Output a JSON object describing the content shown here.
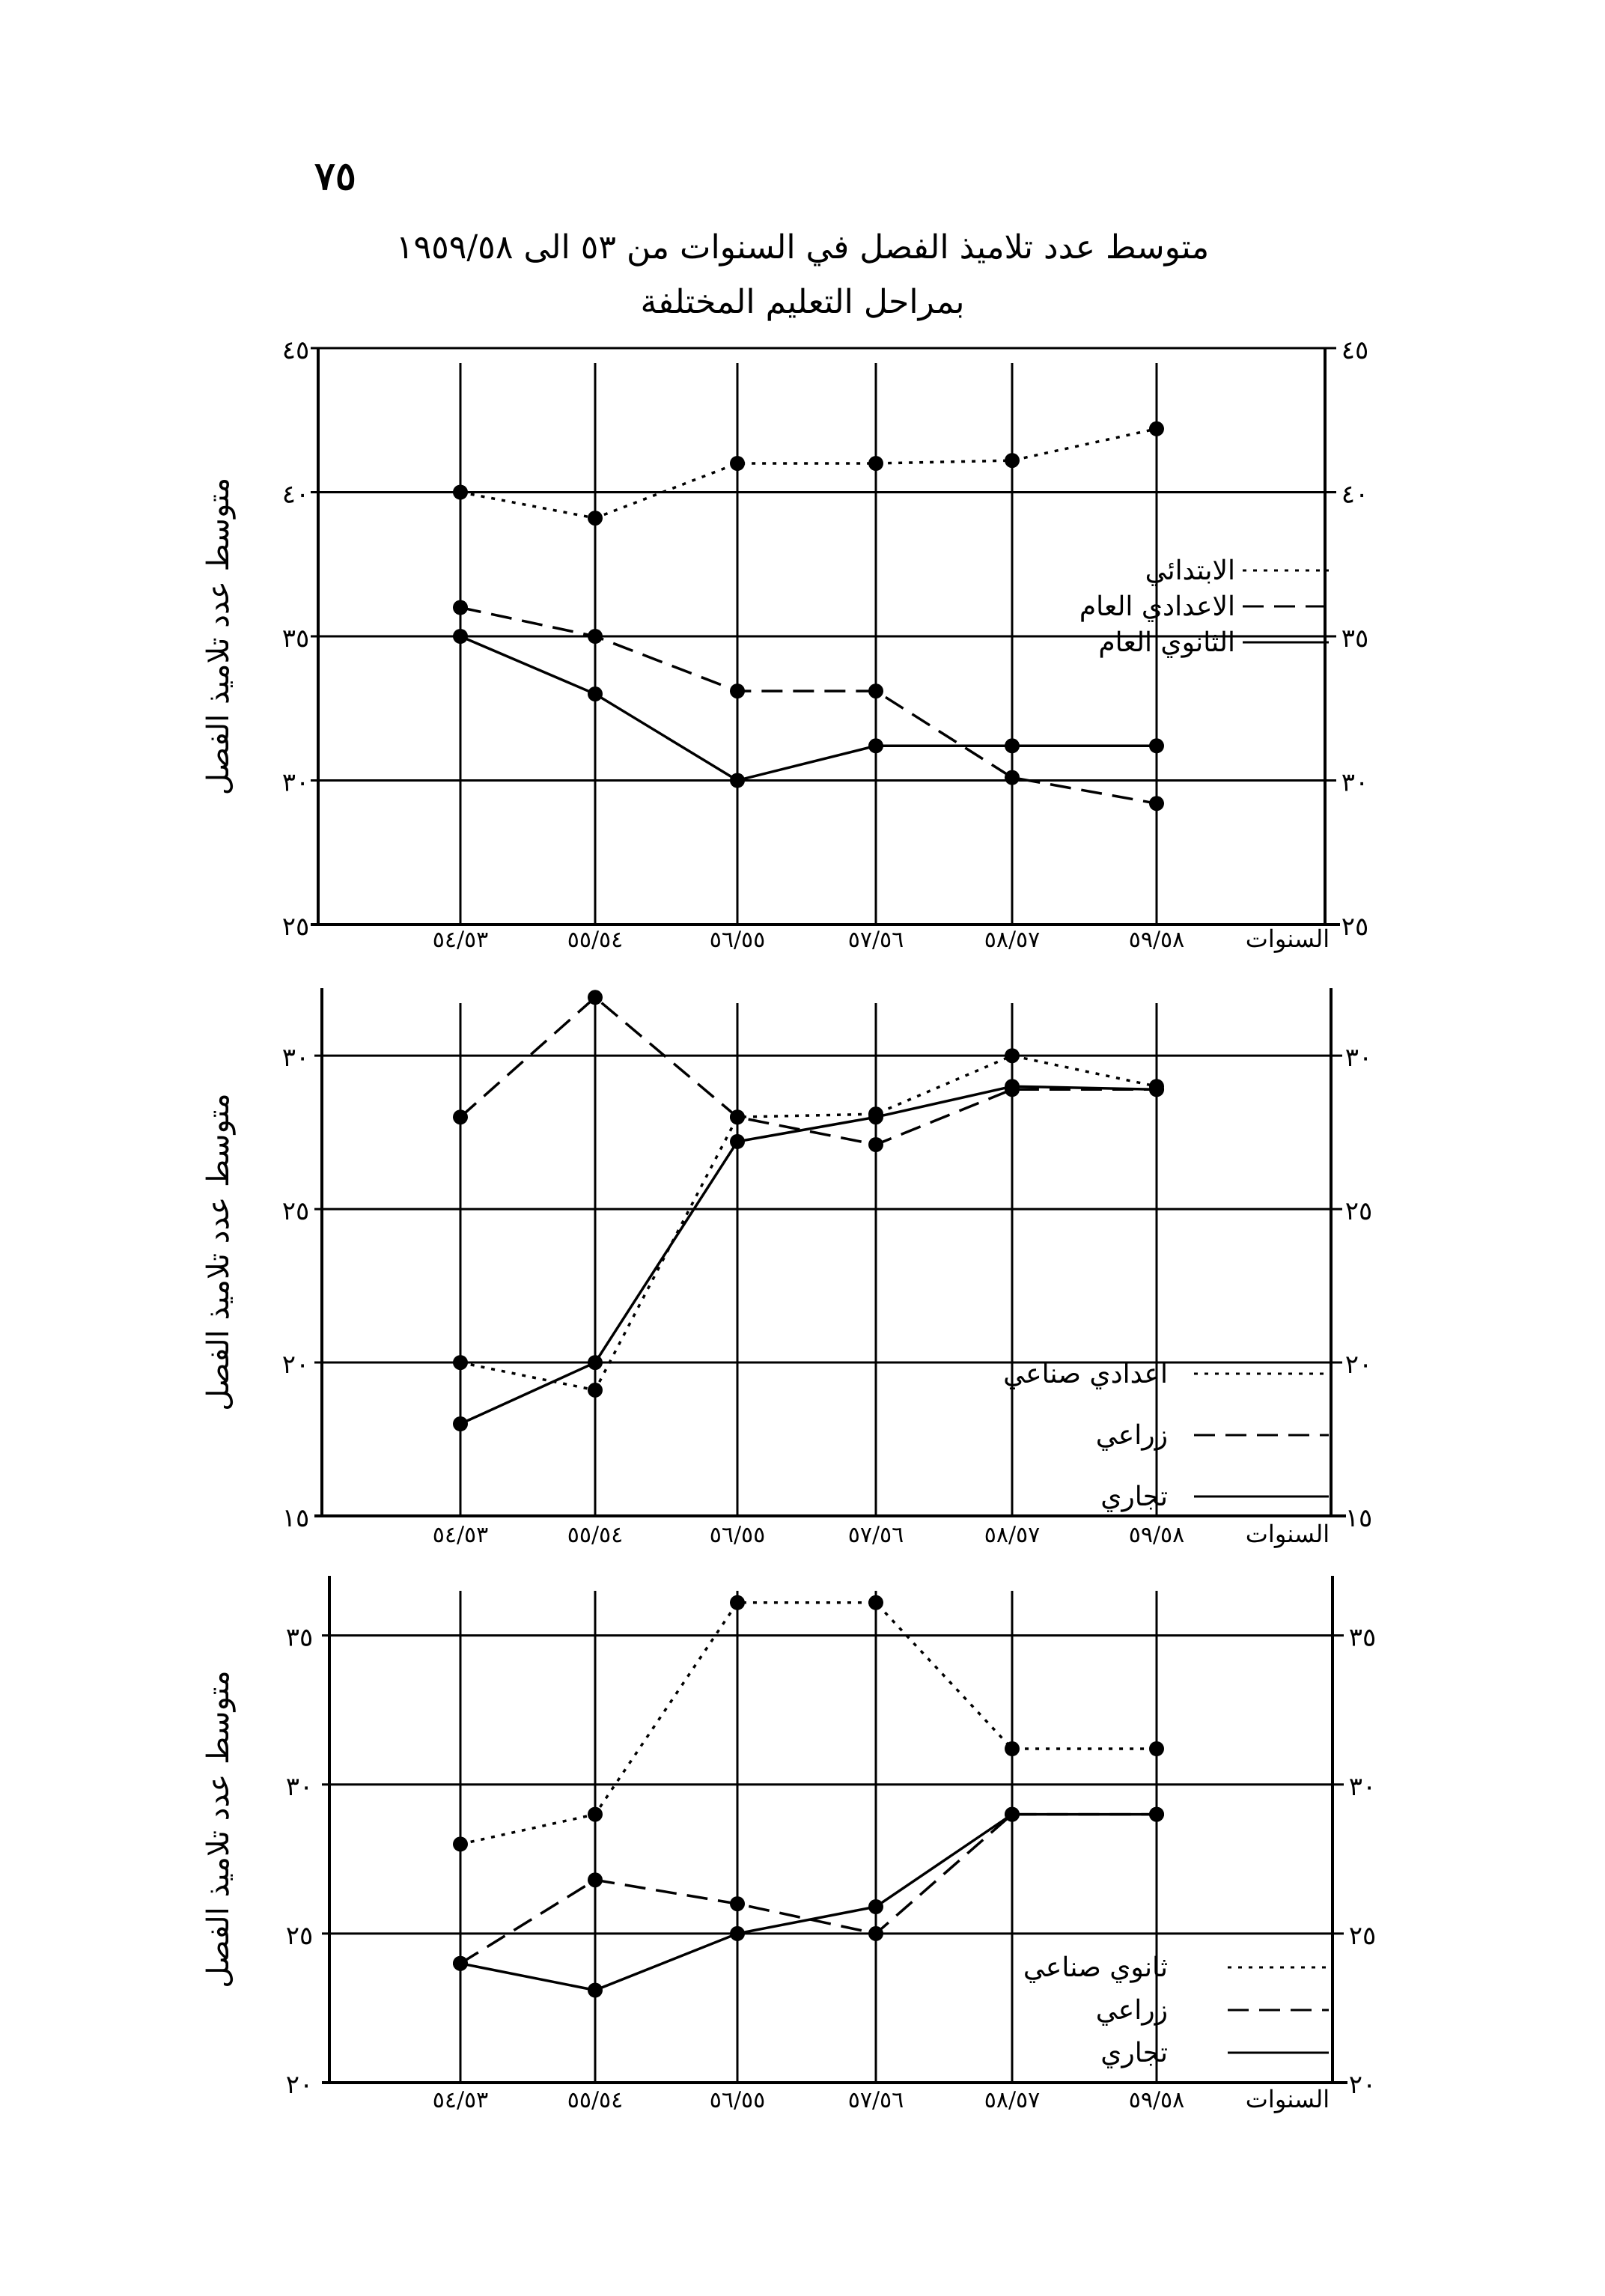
{
  "page": {
    "number": "٧٥",
    "title_line1": "متوسط عدد تلاميذ الفصل في السنوات من ٥٣ الى ١٩٥٩/٥٨",
    "title_line2": "بمراحل التعليم المختلفة"
  },
  "chart_data": [
    {
      "type": "line",
      "title": "",
      "xlabel": "السنوات",
      "ylabel": "متوسط عدد تلاميذ الفصل",
      "categories": [
        "٥٤/٥٣",
        "٥٥/٥٤",
        "٥٦/٥٥",
        "٥٧/٥٦",
        "٥٨/٥٧",
        "٥٩/٥٨"
      ],
      "ylim": [
        25,
        45
      ],
      "yticks": [
        25,
        30,
        35,
        40,
        45
      ],
      "ytick_labels": [
        "٢٥",
        "٣٠",
        "٣٥",
        "٤٠",
        "٤٥"
      ],
      "grid": true,
      "legend_position": "right",
      "series": [
        {
          "name": "الابتدائي",
          "style": "dotted",
          "values": [
            40.0,
            39.1,
            41.0,
            41.0,
            41.1,
            42.2
          ]
        },
        {
          "name": "الاعدادي العام",
          "style": "dashed",
          "values": [
            36.0,
            35.0,
            33.1,
            33.1,
            30.1,
            29.2
          ]
        },
        {
          "name": "الثانوي العام",
          "style": "solid",
          "values": [
            35.0,
            33.0,
            30.0,
            31.2,
            31.2,
            31.2
          ]
        }
      ]
    },
    {
      "type": "line",
      "title": "",
      "xlabel": "السنوات",
      "ylabel": "متوسط عدد تلاميذ الفصل",
      "categories": [
        "٥٤/٥٣",
        "٥٥/٥٤",
        "٥٦/٥٥",
        "٥٧/٥٦",
        "٥٨/٥٧",
        "٥٩/٥٨"
      ],
      "ylim": [
        15,
        32.2
      ],
      "yticks": [
        15,
        20,
        25,
        30
      ],
      "ytick_labels": [
        "١٥",
        "٢٠",
        "٢٥",
        "٣٠"
      ],
      "grid": true,
      "legend_position": "right",
      "series": [
        {
          "name": "اعدادي صناعي",
          "style": "dotted",
          "values": [
            20.0,
            19.1,
            28.0,
            28.1,
            30.0,
            29.0
          ]
        },
        {
          "name": "زراعي",
          "style": "dashed",
          "values": [
            28.0,
            31.9,
            28.0,
            27.1,
            28.9,
            28.9
          ]
        },
        {
          "name": "تجاري",
          "style": "solid",
          "values": [
            18.0,
            20.0,
            27.2,
            28.0,
            29.0,
            28.9
          ]
        }
      ]
    },
    {
      "type": "line",
      "title": "",
      "xlabel": "السنوات",
      "ylabel": "متوسط عدد تلاميذ الفصل",
      "categories": [
        "٥٤/٥٣",
        "٥٥/٥٤",
        "٥٦/٥٥",
        "٥٧/٥٦",
        "٥٨/٥٧",
        "٥٩/٥٨"
      ],
      "ylim": [
        20,
        37
      ],
      "yticks": [
        20,
        25,
        30,
        35
      ],
      "ytick_labels": [
        "٢٠",
        "٢٥",
        "٣٠",
        "٣٥"
      ],
      "grid": true,
      "legend_position": "bottom-right",
      "series": [
        {
          "name": "ثانوي صناعي",
          "style": "dotted",
          "values": [
            28.0,
            29.0,
            36.1,
            36.1,
            31.2,
            31.2
          ]
        },
        {
          "name": "زراعي",
          "style": "dashed",
          "values": [
            24.0,
            26.8,
            26.0,
            25.0,
            29.0,
            29.0
          ]
        },
        {
          "name": "تجاري",
          "style": "solid",
          "values": [
            24.0,
            23.1,
            25.0,
            25.9,
            29.0,
            29.0
          ]
        }
      ]
    }
  ]
}
